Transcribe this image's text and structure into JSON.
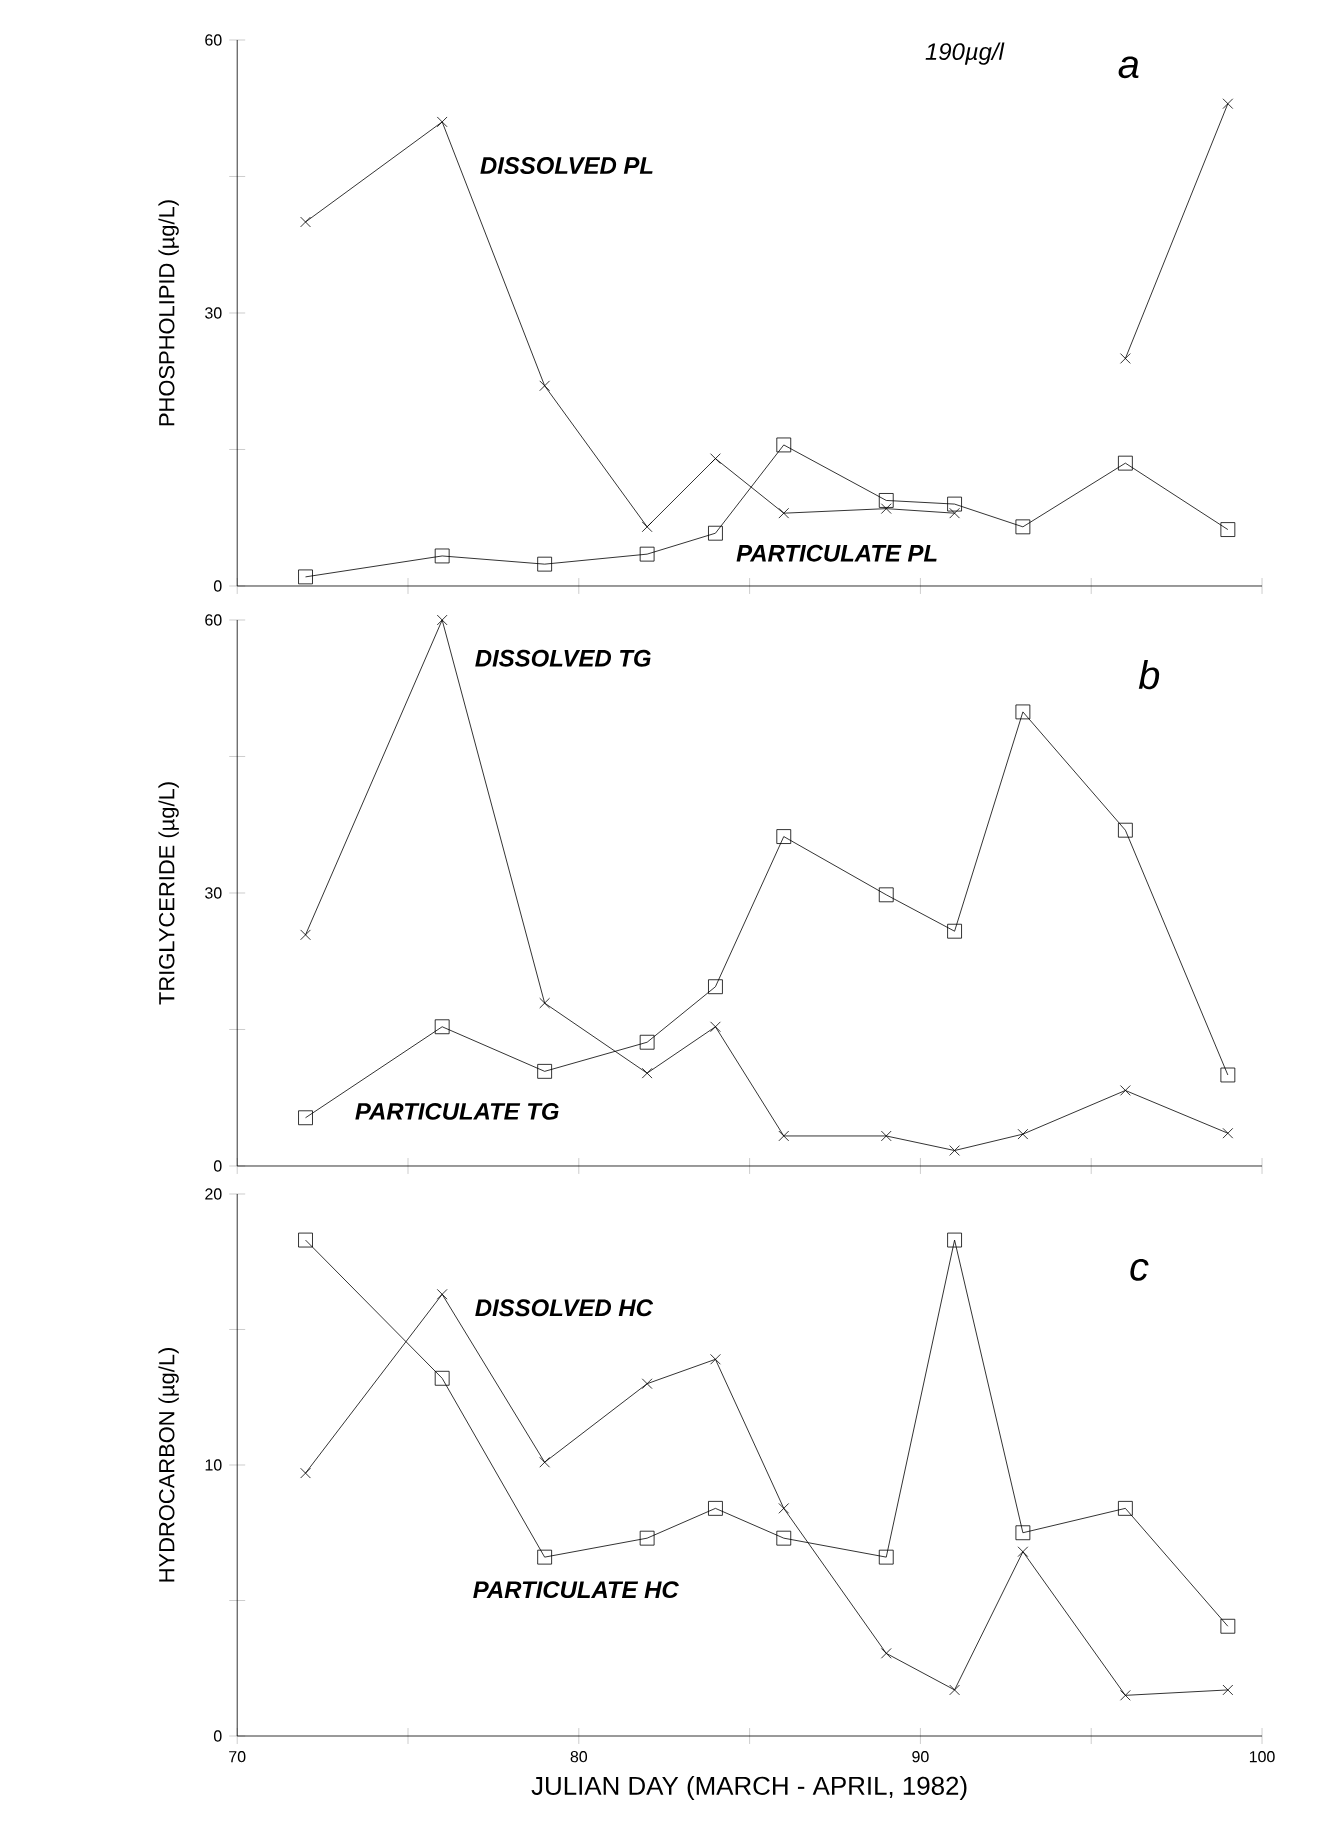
{
  "chart_data": [
    {
      "type": "line",
      "ylabel": "PHOSPHOLIPID (µg/L)",
      "x": [
        72,
        76,
        79,
        82,
        84,
        86,
        89,
        91,
        93,
        96,
        99
      ],
      "series": [
        {
          "name": "DISSOLVED PL",
          "color": "#000000",
          "marker": "cross",
          "values": [
            40,
            51,
            22,
            6.5,
            14,
            8,
            8.5,
            8,
            null,
            25,
            53
          ]
        },
        {
          "name": "PARTICULATE PL",
          "color": "#000000",
          "marker": "square",
          "values": [
            1,
            3.3,
            2.4,
            3.5,
            5.8,
            15.5,
            9.4,
            9,
            6.5,
            13.5,
            6.2
          ]
        }
      ],
      "xlim": [
        70,
        100
      ],
      "xticks": [
        70,
        {
          "value": 75,
          "label": null
        },
        80,
        {
          "value": 85,
          "label": null
        },
        90,
        {
          "value": 95,
          "label": null
        },
        100
      ],
      "ylim": [
        0,
        60
      ],
      "yticks": [
        0,
        {
          "value": 15,
          "label": null
        },
        30,
        {
          "value": 45,
          "label": null
        },
        60
      ],
      "tick_labels": "y",
      "annotations": [
        "190µg/l",
        "a"
      ]
    },
    {
      "type": "line",
      "ylabel": "TRIGLYCERIDE (µg/L)",
      "x": [
        72,
        76,
        79,
        82,
        84,
        86,
        89,
        91,
        93,
        96,
        99
      ],
      "series": [
        {
          "name": "DISSOLVED TG",
          "color": "#000000",
          "marker": "cross",
          "values": [
            25.4,
            60,
            17.9,
            10.2,
            15.3,
            3.3,
            3.3,
            1.7,
            3.5,
            8.3,
            3.6
          ]
        },
        {
          "name": "PARTICULATE TG",
          "color": "#000000",
          "marker": "square",
          "values": [
            5.3,
            15.3,
            10.4,
            13.6,
            19.7,
            36.2,
            29.8,
            25.8,
            49.9,
            36.9,
            10
          ]
        }
      ],
      "xlim": [
        70,
        100
      ],
      "xticks": [
        70,
        {
          "value": 75,
          "label": null
        },
        80,
        {
          "value": 85,
          "label": null
        },
        90,
        {
          "value": 95,
          "label": null
        },
        100
      ],
      "ylim": [
        0,
        60
      ],
      "yticks": [
        0,
        {
          "value": 15,
          "label": null
        },
        30,
        {
          "value": 45,
          "label": null
        },
        60
      ],
      "tick_labels": "y",
      "annotations": [
        "b"
      ]
    },
    {
      "type": "line",
      "ylabel": "HYDROCARBON (µg/L)",
      "xlabel": "JULIAN DAY (MARCH - APRIL, 1982)",
      "x": [
        72,
        76,
        79,
        82,
        84,
        86,
        89,
        91,
        93,
        96,
        99
      ],
      "series": [
        {
          "name": "DISSOLVED HC",
          "color": "#000000",
          "marker": "cross",
          "values": [
            9.7,
            16.3,
            10.1,
            13,
            13.9,
            8.4,
            3.05,
            1.7,
            6.8,
            1.5,
            1.7
          ]
        },
        {
          "name": "PARTICULATE HC",
          "color": "#000000",
          "marker": "square",
          "values": [
            18.3,
            13.2,
            6.6,
            7.3,
            8.4,
            7.3,
            6.6,
            18.3,
            7.5,
            8.4,
            4.05
          ]
        }
      ],
      "xlim": [
        70,
        100
      ],
      "xticks": [
        70,
        {
          "value": 75,
          "label": null
        },
        80,
        {
          "value": 85,
          "label": null
        },
        90,
        {
          "value": 95,
          "label": null
        },
        100
      ],
      "ylim": [
        0,
        20
      ],
      "yticks": [
        0,
        {
          "value": 5,
          "label": null
        },
        10,
        {
          "value": 15,
          "label": null
        },
        20
      ],
      "annotations": [
        "c"
      ]
    }
  ]
}
